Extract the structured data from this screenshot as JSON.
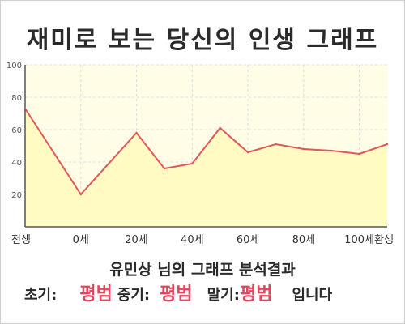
{
  "title": "재미로 보는 당신의 인생 그래프",
  "chart_data": {
    "type": "area",
    "categories": [
      "전생",
      "0세",
      "20세",
      "40세",
      "60세",
      "80세",
      "100세",
      "환생"
    ],
    "x": [
      -20,
      0,
      20,
      30,
      40,
      50,
      60,
      70,
      80,
      90,
      100,
      110
    ],
    "values": [
      73,
      20,
      58,
      36,
      39,
      61,
      46,
      51,
      48,
      47,
      45,
      51
    ],
    "ylim": [
      0,
      100
    ],
    "yticks": [
      20,
      40,
      60,
      80,
      100
    ],
    "grid": true,
    "colors": {
      "line": "#e0565b",
      "fill": "#fffbc2",
      "plot_bg": "#fffde6",
      "grid": "#dddddd"
    }
  },
  "summary": "유민상 님의 그래프 분석결과",
  "result": {
    "early_label": "초기:",
    "early_value": "평범",
    "mid_label": "중기:",
    "mid_value": "평범",
    "late_label": "말기:",
    "late_value": "평범",
    "suffix": "입니다"
  }
}
